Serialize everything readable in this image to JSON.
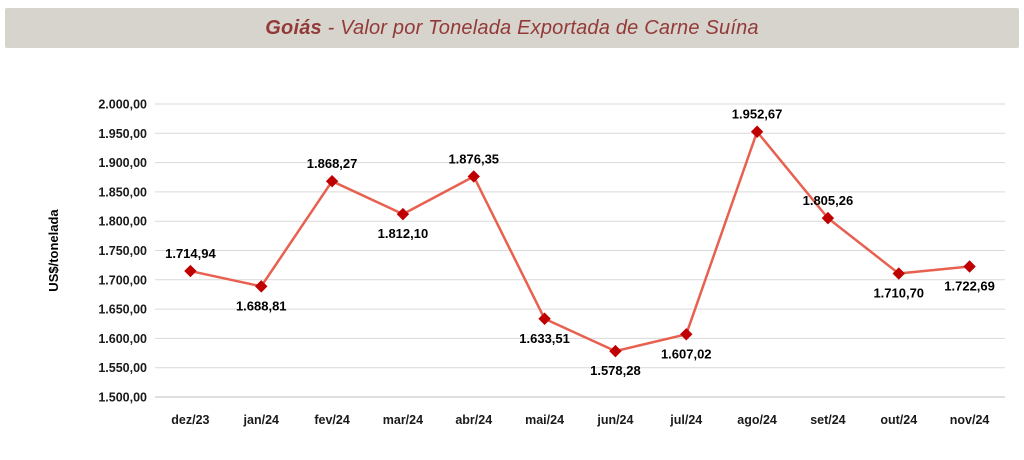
{
  "header": {
    "title_emphasis": "Goiás",
    "title_rest": " - Valor por Tonelada Exportada de Carne Suína"
  },
  "chart_data": {
    "type": "line",
    "title": "Goiás - Valor por Tonelada Exportada de Carne Suína",
    "xlabel": "",
    "ylabel": "US$/tonelada",
    "categories": [
      "dez/23",
      "jan/24",
      "fev/24",
      "mar/24",
      "abr/24",
      "mai/24",
      "jun/24",
      "jul/24",
      "ago/24",
      "set/24",
      "out/24",
      "nov/24"
    ],
    "values": [
      1714.94,
      1688.81,
      1868.27,
      1812.1,
      1876.35,
      1633.51,
      1578.28,
      1607.02,
      1952.67,
      1805.26,
      1710.7,
      1722.69
    ],
    "value_labels": [
      "1.714,94",
      "1.688,81",
      "1.868,27",
      "1.812,10",
      "1.876,35",
      "1.633,51",
      "1.578,28",
      "1.607,02",
      "1.952,67",
      "1.805,26",
      "1.710,70",
      "1.722,69"
    ],
    "label_positions": [
      "above",
      "below",
      "above",
      "below",
      "above",
      "below",
      "below",
      "below",
      "above",
      "above",
      "below",
      "below"
    ],
    "ylim": [
      1500,
      2000
    ],
    "ytick_step": 50,
    "ytick_labels": [
      "1.500,00",
      "1.550,00",
      "1.600,00",
      "1.650,00",
      "1.700,00",
      "1.750,00",
      "1.800,00",
      "1.850,00",
      "1.900,00",
      "1.950,00",
      "2.000,00"
    ],
    "grid": true,
    "legend": "none",
    "line_color": "#e8604f",
    "marker_color": "#c00000",
    "marker_shape": "diamond",
    "gridline_color": "#d9d9d9",
    "axisline_color": "#bfbfbf"
  }
}
